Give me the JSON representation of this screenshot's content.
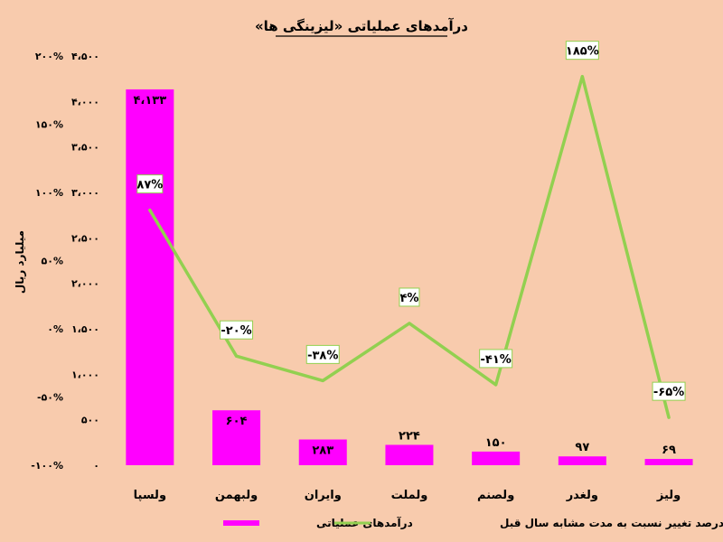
{
  "chart_data": {
    "type": "bar",
    "title": "درآمدهای عملیاتی «لیزینگی ها»",
    "ylabel": "میلیارد ریال",
    "categories": [
      "ولسپا",
      "ولبهمن",
      "وایران",
      "ولملت",
      "ولصنم",
      "ولغدر",
      "ولیز"
    ],
    "y_left": {
      "ylim": [
        0,
        4500
      ],
      "ticks": [
        0,
        500,
        1000,
        1500,
        2000,
        2500,
        3000,
        3500,
        4000,
        4500
      ],
      "tick_labels": [
        "۰",
        "۵۰۰",
        "۱،۰۰۰",
        "۱،۵۰۰",
        "۲،۰۰۰",
        "۲،۵۰۰",
        "۳،۰۰۰",
        "۳،۵۰۰",
        "۴،۰۰۰",
        "۴،۵۰۰"
      ]
    },
    "y_right": {
      "ylim": [
        -100,
        200
      ],
      "ticks": [
        -100,
        -50,
        0,
        50,
        100,
        150,
        200
      ],
      "tick_labels": [
        "-۱۰۰%",
        "-۵۰%",
        "۰%",
        "۵۰%",
        "۱۰۰%",
        "۱۵۰%",
        "۲۰۰%"
      ]
    },
    "series": [
      {
        "name": "درآمدهای عملیاتی",
        "type": "bar",
        "axis": "left",
        "color": "#ff00ff",
        "values": [
          4133,
          604,
          283,
          224,
          150,
          97,
          69
        ],
        "labels": [
          "۴،۱۳۳",
          "۶۰۴",
          "۲۸۳",
          "۲۲۴",
          "۱۵۰",
          "۹۷",
          "۶۹"
        ]
      },
      {
        "name": "درصد تغییر نسبت به مدت مشابه سال قبل",
        "type": "line",
        "axis": "right",
        "color": "#92d050",
        "values": [
          87,
          -20,
          -38,
          4,
          -41,
          185,
          -65
        ],
        "labels": [
          "۸۷%",
          "-۲۰%",
          "-۳۸%",
          "۴%",
          "-۴۱%",
          "۱۸۵%",
          "-۶۵%"
        ]
      }
    ],
    "grid": false,
    "legend_position": "bottom"
  }
}
